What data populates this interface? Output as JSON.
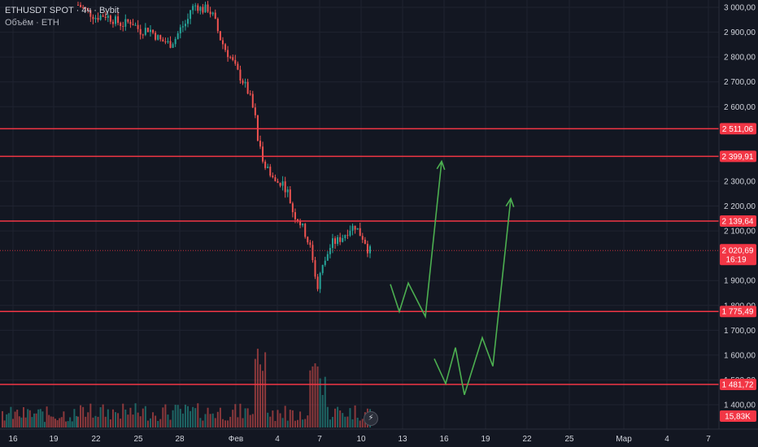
{
  "header": {
    "symbol_line": "ETHUSDT SPOT · 4ч · Bybit",
    "volume_line": "Объём · ETH"
  },
  "colors": {
    "background": "#131722",
    "grid": "#1f2330",
    "up": "#26a69a",
    "down": "#ef5350",
    "level_line": "#f23645",
    "arrow": "#4caf50"
  },
  "chart_data": {
    "type": "candlestick",
    "title": "ETHUSDT SPOT",
    "interval": "4ч",
    "exchange": "Bybit",
    "ylim": [
      1380,
      3030
    ],
    "y_ticks": [
      "3 000,00",
      "2 900,00",
      "2 800,00",
      "2 700,00",
      "2 600,00",
      "2 300,00",
      "2 200,00",
      "2 100,00",
      "1 900,00",
      "1 800,00",
      "1 700,00",
      "1 600,00",
      "1 500,00",
      "1 400,00"
    ],
    "y_tick_values": [
      3000,
      2900,
      2800,
      2700,
      2600,
      2300,
      2200,
      2100,
      1900,
      1800,
      1700,
      1600,
      1500,
      1400
    ],
    "x_ticks": [
      "16",
      "19",
      "22",
      "25",
      "28",
      "Фев",
      "4",
      "7",
      "10",
      "13",
      "16",
      "19",
      "22",
      "25",
      "Мар",
      "4",
      "7"
    ],
    "levels": [
      {
        "label": "2 511,06",
        "value": 2511.06
      },
      {
        "label": "2 399,91",
        "value": 2399.91
      },
      {
        "label": "2 139,64",
        "value": 2139.64
      },
      {
        "label": "1 775,49",
        "value": 1775.49
      },
      {
        "label": "1 481,72",
        "value": 1481.72
      }
    ],
    "current_price": {
      "label": "2 020,69",
      "value": 2020.69,
      "countdown": "16:19"
    },
    "volume_label": "15,83K",
    "price_path": [
      [
        0,
        3010
      ],
      [
        3,
        2985
      ],
      [
        6,
        2960
      ],
      [
        9,
        2970
      ],
      [
        12,
        2950
      ],
      [
        15,
        2930
      ],
      [
        18,
        2945
      ],
      [
        21,
        2905
      ],
      [
        24,
        2915
      ],
      [
        26,
        2890
      ],
      [
        28,
        2865
      ],
      [
        30,
        2860
      ],
      [
        31,
        2850
      ],
      [
        33,
        2875
      ],
      [
        35,
        2920
      ],
      [
        37,
        2940
      ],
      [
        38,
        2990
      ],
      [
        40,
        3010
      ],
      [
        42,
        2990
      ],
      [
        44,
        2995
      ],
      [
        46,
        2960
      ],
      [
        48,
        2880
      ],
      [
        50,
        2830
      ],
      [
        52,
        2790
      ],
      [
        54,
        2740
      ],
      [
        56,
        2700
      ],
      [
        58,
        2650
      ],
      [
        60,
        2560
      ],
      [
        61,
        2460
      ],
      [
        63,
        2380
      ],
      [
        65,
        2340
      ],
      [
        67,
        2290
      ],
      [
        69,
        2300
      ],
      [
        71,
        2260
      ],
      [
        73,
        2170
      ],
      [
        75,
        2140
      ],
      [
        77,
        2090
      ],
      [
        79,
        2020
      ],
      [
        80,
        1960
      ],
      [
        81,
        1870
      ],
      [
        82,
        1920
      ],
      [
        84,
        1990
      ],
      [
        86,
        2050
      ],
      [
        88,
        2060
      ],
      [
        90,
        2080
      ],
      [
        92,
        2110
      ],
      [
        94,
        2120
      ],
      [
        95,
        2100
      ],
      [
        96,
        2080
      ],
      [
        97,
        2070
      ],
      [
        98,
        2030
      ],
      [
        99,
        2020
      ]
    ],
    "forecast_paths": [
      [
        [
          2,
          1885
        ],
        [
          3,
          1775
        ],
        [
          4,
          1890
        ],
        [
          5,
          1755
        ],
        [
          6,
          2380
        ]
      ],
      [
        [
          1,
          1585
        ],
        [
          2,
          1485
        ],
        [
          3,
          1630
        ],
        [
          4,
          1440
        ],
        [
          5,
          1670
        ],
        [
          6,
          1555
        ],
        [
          7,
          2230
        ]
      ]
    ]
  }
}
